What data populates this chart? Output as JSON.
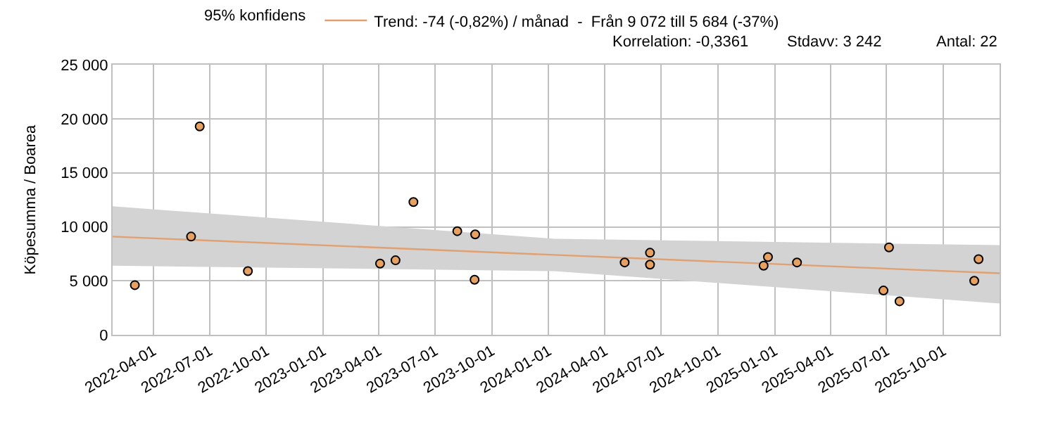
{
  "chart_data": {
    "type": "scatter",
    "ylabel": "Köpesumma / Boarea",
    "xlim": [
      "2022-01-25",
      "2025-12-31"
    ],
    "xticks": [
      "2022-04-01",
      "2022-07-01",
      "2022-10-01",
      "2023-01-01",
      "2023-04-01",
      "2023-07-01",
      "2023-10-01",
      "2024-01-01",
      "2024-04-01",
      "2024-07-01",
      "2024-10-01",
      "2025-01-01",
      "2025-04-01",
      "2025-07-01",
      "2025-10-01"
    ],
    "ylim": [
      0,
      25000
    ],
    "yticks": [
      {
        "value": 0,
        "label": "0"
      },
      {
        "value": 5000,
        "label": "5 000"
      },
      {
        "value": 10000,
        "label": "10 000"
      },
      {
        "value": 15000,
        "label": "15 000"
      },
      {
        "value": 20000,
        "label": "20 000"
      },
      {
        "value": 25000,
        "label": "25 000"
      }
    ],
    "legend_title": "95% konfidens",
    "grid": true,
    "legend": "top",
    "marker": "circle",
    "series": [
      {
        "type": "line",
        "name": "Trend: -74 (-0,82%) / månad  -  Från 9 072 till 5 684 (-37%)",
        "color": "#e0a070",
        "marker": "none",
        "x": [
          "2022-01-25",
          "2024-01-10",
          "2025-12-31"
        ],
        "values": [
          9100,
          7400,
          5700
        ],
        "lower": [
          6400,
          5900,
          2900
        ],
        "upper": [
          11900,
          8900,
          8300
        ]
      },
      {
        "color": "#e8a060",
        "x": [
          "2022-03-02",
          "2022-06-01",
          "2022-06-15",
          "2022-09-01",
          "2023-04-03",
          "2023-04-28",
          "2023-05-27",
          "2023-08-06",
          "2023-09-04",
          "2023-09-03",
          "2024-05-03",
          "2024-06-13",
          "2024-06-13",
          "2024-12-14",
          "2024-12-21",
          "2025-02-06",
          "2025-06-26",
          "2025-07-05",
          "2025-07-22",
          "2025-11-20",
          "2025-11-27"
        ],
        "values": [
          4600,
          9100,
          19300,
          5900,
          6600,
          6900,
          12300,
          9600,
          9300,
          5100,
          6700,
          7600,
          6500,
          6400,
          7200,
          6700,
          4100,
          8100,
          3100,
          5000,
          7000
        ]
      }
    ],
    "annotations": [
      "Korrelation: -0,3361",
      "Stdavv: 3 242",
      "Antal: 22"
    ]
  }
}
